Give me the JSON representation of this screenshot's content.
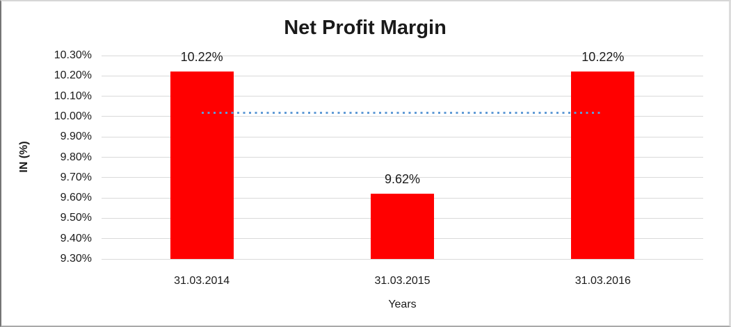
{
  "window": {
    "background": "#ffffff",
    "frame_border_color": "#d9d9d9"
  },
  "chart_data": {
    "type": "bar",
    "title": "Net Profit Margin",
    "xlabel": "Years",
    "ylabel": "IN (%)",
    "categories": [
      "31.03.2014",
      "31.03.2015",
      "31.03.2016"
    ],
    "series": [
      {
        "name": "Net Profit Margin",
        "values": [
          10.22,
          9.62,
          10.22
        ],
        "data_labels": [
          "10.22%",
          "9.62%",
          "10.22%"
        ],
        "color": "#ff0000"
      }
    ],
    "ylim": [
      9.3,
      10.3
    ],
    "ytick_step": 0.1,
    "ytick_labels": [
      "10.30%",
      "10.20%",
      "10.10%",
      "10.00%",
      "9.90%",
      "9.80%",
      "9.70%",
      "9.60%",
      "9.50%",
      "9.40%",
      "9.30%"
    ],
    "grid": true,
    "gridline_color": "#d9d9d9",
    "legend": "none",
    "trendline": {
      "type": "linear",
      "value": 10.02,
      "style": "dotted",
      "color": "#5f9ad5",
      "from_category": 0,
      "to_category": 2
    }
  }
}
